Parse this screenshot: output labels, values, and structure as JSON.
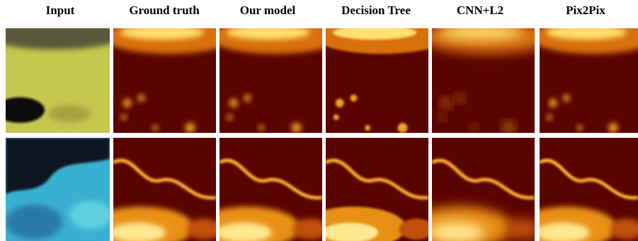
{
  "columns": [
    "Input",
    "Ground truth",
    "Our model",
    "Decision Tree",
    "CNN+L2",
    "Pix2Pix"
  ]
}
